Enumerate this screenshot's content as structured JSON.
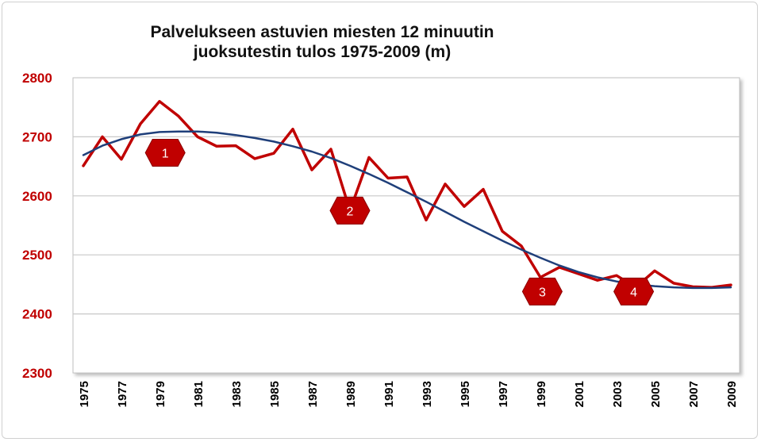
{
  "chart_data": {
    "type": "line",
    "title_line1": "Palvelukseen astuvien miesten 12 minuutin",
    "title_line2": "juoksutestin tulos 1975-2009 (m)",
    "ylim": [
      2300,
      2800
    ],
    "yticks": [
      2300,
      2400,
      2500,
      2600,
      2700,
      2800
    ],
    "xlim": [
      1975,
      2009
    ],
    "xticks": [
      "1975",
      "1977",
      "1979",
      "1981",
      "1983",
      "1985",
      "1987",
      "1989",
      "1991",
      "1993",
      "1995",
      "1997",
      "1999",
      "2001",
      "2003",
      "2005",
      "2007",
      "2009"
    ],
    "grid": true,
    "series": [
      {
        "color": "#c00000",
        "x": [
          1975,
          1976,
          1977,
          1978,
          1979,
          1980,
          1981,
          1982,
          1983,
          1984,
          1985,
          1986,
          1987,
          1988,
          1989,
          1990,
          1991,
          1992,
          1993,
          1994,
          1995,
          1996,
          1997,
          1998,
          1999,
          2000,
          2001,
          2002,
          2003,
          2004,
          2005,
          2006,
          2007,
          2008,
          2009
        ],
        "values": [
          2651,
          2700,
          2662,
          2722,
          2760,
          2735,
          2700,
          2684,
          2685,
          2663,
          2672,
          2713,
          2644,
          2679,
          2575,
          2665,
          2630,
          2632,
          2559,
          2620,
          2582,
          2611,
          2540,
          2515,
          2462,
          2479,
          2468,
          2457,
          2465,
          2445,
          2473,
          2452,
          2446,
          2445,
          2449
        ]
      },
      {
        "color": "#1f3f7a",
        "x": [
          1975,
          1976,
          1977,
          1978,
          1979,
          1980,
          1981,
          1982,
          1983,
          1984,
          1985,
          1986,
          1987,
          1988,
          1989,
          1990,
          1991,
          1992,
          1993,
          1994,
          1995,
          1996,
          1997,
          1998,
          1999,
          2000,
          2001,
          2002,
          2003,
          2004,
          2005,
          2006,
          2007,
          2008,
          2009
        ],
        "values": [
          2669,
          2685,
          2696,
          2704,
          2708,
          2709,
          2709,
          2707,
          2703,
          2698,
          2692,
          2684,
          2675,
          2664,
          2651,
          2637,
          2622,
          2606,
          2590,
          2573,
          2556,
          2540,
          2524,
          2509,
          2495,
          2482,
          2471,
          2462,
          2455,
          2450,
          2447,
          2445,
          2444,
          2444,
          2445
        ]
      }
    ],
    "annotations": [
      {
        "label": "1",
        "x": 1979.3,
        "y": 2673,
        "color": "#c00000"
      },
      {
        "label": "2",
        "x": 1989,
        "y": 2575,
        "color": "#c00000"
      },
      {
        "label": "3",
        "x": 1999.1,
        "y": 2438,
        "color": "#c00000"
      },
      {
        "label": "4",
        "x": 2003.9,
        "y": 2438,
        "color": "#c00000"
      }
    ]
  }
}
